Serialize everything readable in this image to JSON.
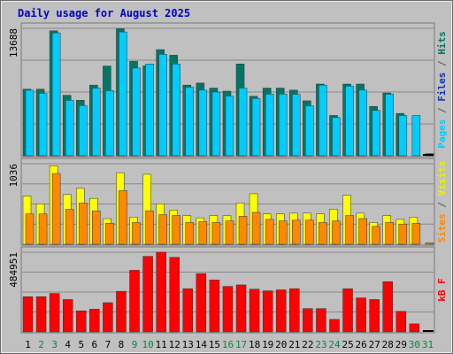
{
  "chart_data": {
    "type": "bar",
    "title": "Daily usage for August 2025",
    "categories": [
      "1",
      "2",
      "3",
      "4",
      "5",
      "6",
      "7",
      "8",
      "9",
      "10",
      "11",
      "12",
      "13",
      "14",
      "15",
      "16",
      "17",
      "18",
      "19",
      "20",
      "21",
      "22",
      "23",
      "24",
      "25",
      "26",
      "27",
      "28",
      "29",
      "30",
      "31"
    ],
    "weekend_days": [
      "2",
      "3",
      "9",
      "10",
      "16",
      "17",
      "23",
      "24",
      "30",
      "31"
    ],
    "panels": [
      {
        "name": "pages-files-hits",
        "ymax_label": "13688",
        "ymax": 13688,
        "grid": true,
        "side_label_parts": [
          {
            "text": "Pages",
            "color": "#00ccff"
          },
          {
            "text": " / ",
            "color": "#555555"
          },
          {
            "text": "Files",
            "color": "#1133aa"
          },
          {
            "text": " / ",
            "color": "#555555"
          },
          {
            "text": "Hits",
            "color": "#007766"
          }
        ],
        "series": [
          {
            "name": "Hits",
            "color": "#007766",
            "values": [
              7150,
              7150,
              13420,
              6500,
              5960,
              7590,
              9640,
              13650,
              10140,
              9650,
              11400,
              10800,
              7590,
              7810,
              7270,
              6940,
              9860,
              6400,
              7270,
              7270,
              7050,
              5900,
              7700,
              4330,
              7700,
              7700,
              5300,
              6740,
              4550,
              0,
              0
            ]
          },
          {
            "name": "Files",
            "color": "#1133aa",
            "values": [
              5000,
              4800,
              9500,
              4300,
              3900,
              5200,
              6700,
              9500,
              7000,
              6700,
              7900,
              7500,
              5200,
              5400,
              5000,
              4800,
              6900,
              4400,
              5000,
              5000,
              4800,
              4000,
              5300,
              3000,
              5300,
              5300,
              3600,
              4600,
              3100,
              0,
              0
            ]
          },
          {
            "name": "Pages",
            "color": "#00ccff",
            "values": [
              7040,
              6690,
              13200,
              5950,
              5400,
              7270,
              7000,
              13300,
              9420,
              9860,
              10900,
              9860,
              7370,
              7050,
              6840,
              6420,
              7270,
              6160,
              6620,
              6620,
              6600,
              5360,
              7590,
              4120,
              7490,
              7060,
              4870,
              6620,
              4330,
              4330,
              250
            ]
          }
        ]
      },
      {
        "name": "visits-sites",
        "ymax_label": "1036",
        "ymax": 1036,
        "grid": true,
        "side_label_parts": [
          {
            "text": "Sites",
            "color": "#ff8800"
          },
          {
            "text": " / ",
            "color": "#555555"
          },
          {
            "text": "Visits",
            "color": "#eeee00"
          }
        ],
        "series": [
          {
            "name": "Visits",
            "color": "#ffff00",
            "values": [
              620,
              520,
              1010,
              640,
              720,
              590,
              330,
              920,
              350,
              900,
              520,
              440,
              370,
              340,
              370,
              370,
              530,
              650,
              390,
              390,
              400,
              400,
              390,
              450,
              630,
              400,
              280,
              370,
              320,
              350,
              0
            ]
          },
          {
            "name": "Sites",
            "color": "#ff8800",
            "values": [
              390,
              390,
              910,
              450,
              530,
              430,
              270,
              690,
              280,
              430,
              380,
              370,
              280,
              290,
              280,
              300,
              360,
              410,
              320,
              300,
              310,
              310,
              280,
              300,
              370,
              330,
              230,
              280,
              260,
              270,
              20
            ]
          }
        ]
      },
      {
        "name": "kbf",
        "ymax_label": "484951",
        "ymax": 484951,
        "grid": true,
        "side_label_parts": [
          {
            "text": "kB F",
            "color": "#ff0000"
          }
        ],
        "series": [
          {
            "name": "kB F",
            "color": "#ff0000",
            "values": [
              214000,
              214000,
              234000,
              197000,
              128000,
              138000,
              178000,
              247000,
              375000,
              460000,
              484951,
              454000,
              263000,
              355000,
              316000,
              277000,
              286000,
              260000,
              250000,
              256000,
              263000,
              142000,
              142000,
              76000,
              263000,
              207000,
              197000,
              306000,
              125000,
              49000,
              0
            ]
          }
        ]
      }
    ]
  }
}
